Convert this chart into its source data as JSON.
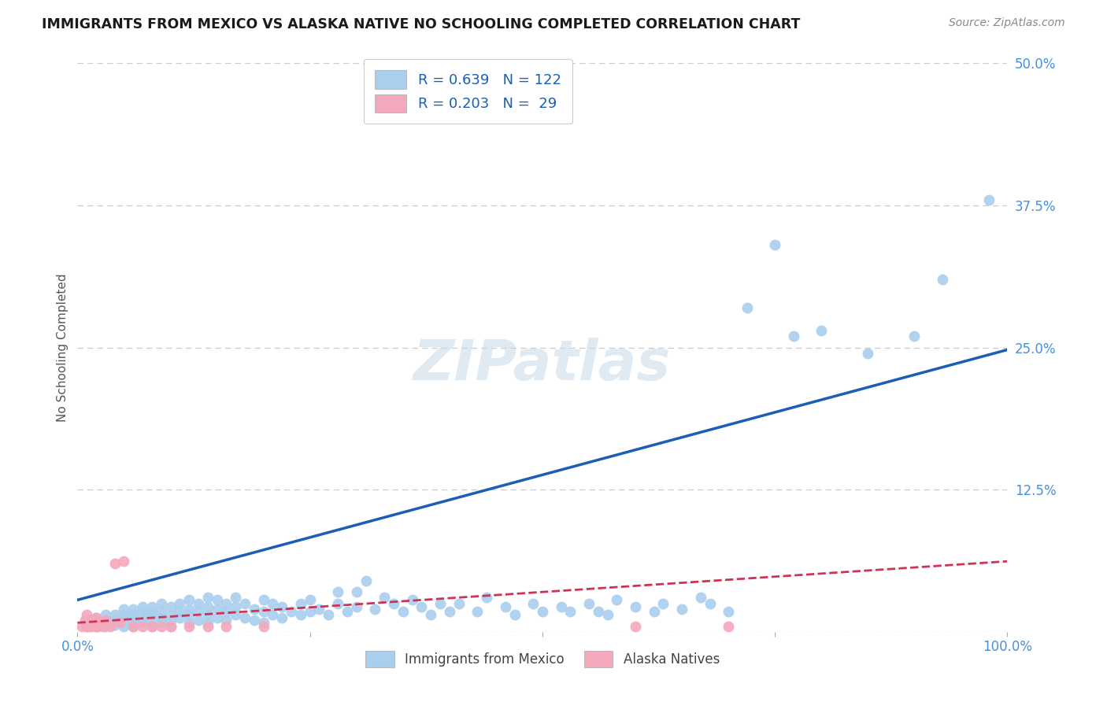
{
  "title": "IMMIGRANTS FROM MEXICO VS ALASKA NATIVE NO SCHOOLING COMPLETED CORRELATION CHART",
  "source": "Source: ZipAtlas.com",
  "ylabel": "No Schooling Completed",
  "x_ticks": [
    0.0,
    0.25,
    0.5,
    0.75,
    1.0
  ],
  "x_tick_labels": [
    "0.0%",
    "",
    "",
    "",
    "100.0%"
  ],
  "y_tick_labels": [
    "",
    "12.5%",
    "25.0%",
    "37.5%",
    "50.0%"
  ],
  "y_ticks": [
    0.0,
    0.125,
    0.25,
    0.375,
    0.5
  ],
  "xlim": [
    0.0,
    1.0
  ],
  "ylim": [
    0.0,
    0.5
  ],
  "blue_R": 0.639,
  "blue_N": 122,
  "pink_R": 0.203,
  "pink_N": 29,
  "legend_labels": [
    "Immigrants from Mexico",
    "Alaska Natives"
  ],
  "blue_color": "#aacfee",
  "pink_color": "#f5a8bb",
  "line_blue": "#1a5fb4",
  "line_pink": "#cc3355",
  "watermark": "ZIPatlas",
  "title_color": "#1a1a1a",
  "tick_color": "#4a90d9",
  "background_color": "#ffffff",
  "grid_color": "#cccccc",
  "blue_scatter_x": [
    0.01,
    0.01,
    0.02,
    0.02,
    0.02,
    0.03,
    0.03,
    0.03,
    0.03,
    0.04,
    0.04,
    0.04,
    0.05,
    0.05,
    0.05,
    0.05,
    0.06,
    0.06,
    0.06,
    0.06,
    0.06,
    0.07,
    0.07,
    0.07,
    0.07,
    0.08,
    0.08,
    0.08,
    0.08,
    0.08,
    0.09,
    0.09,
    0.09,
    0.09,
    0.1,
    0.1,
    0.1,
    0.1,
    0.11,
    0.11,
    0.11,
    0.12,
    0.12,
    0.12,
    0.12,
    0.13,
    0.13,
    0.13,
    0.14,
    0.14,
    0.14,
    0.14,
    0.15,
    0.15,
    0.15,
    0.16,
    0.16,
    0.16,
    0.17,
    0.17,
    0.17,
    0.18,
    0.18,
    0.19,
    0.19,
    0.2,
    0.2,
    0.2,
    0.21,
    0.21,
    0.22,
    0.22,
    0.23,
    0.24,
    0.24,
    0.25,
    0.25,
    0.26,
    0.27,
    0.28,
    0.28,
    0.29,
    0.3,
    0.3,
    0.31,
    0.32,
    0.33,
    0.34,
    0.35,
    0.36,
    0.37,
    0.38,
    0.39,
    0.4,
    0.41,
    0.43,
    0.44,
    0.46,
    0.47,
    0.49,
    0.5,
    0.52,
    0.53,
    0.55,
    0.56,
    0.57,
    0.58,
    0.6,
    0.62,
    0.63,
    0.65,
    0.67,
    0.68,
    0.7,
    0.72,
    0.75,
    0.77,
    0.8,
    0.85,
    0.9,
    0.93,
    0.98
  ],
  "blue_scatter_y": [
    0.005,
    0.01,
    0.005,
    0.008,
    0.012,
    0.005,
    0.008,
    0.01,
    0.015,
    0.006,
    0.01,
    0.015,
    0.005,
    0.01,
    0.015,
    0.02,
    0.005,
    0.008,
    0.012,
    0.015,
    0.02,
    0.008,
    0.012,
    0.018,
    0.022,
    0.005,
    0.01,
    0.015,
    0.018,
    0.022,
    0.008,
    0.012,
    0.018,
    0.025,
    0.005,
    0.01,
    0.015,
    0.022,
    0.012,
    0.018,
    0.025,
    0.008,
    0.015,
    0.02,
    0.028,
    0.01,
    0.018,
    0.025,
    0.008,
    0.015,
    0.022,
    0.03,
    0.012,
    0.02,
    0.028,
    0.01,
    0.018,
    0.025,
    0.015,
    0.022,
    0.03,
    0.012,
    0.025,
    0.01,
    0.02,
    0.008,
    0.018,
    0.028,
    0.015,
    0.025,
    0.012,
    0.022,
    0.018,
    0.015,
    0.025,
    0.018,
    0.028,
    0.02,
    0.015,
    0.025,
    0.035,
    0.018,
    0.022,
    0.035,
    0.045,
    0.02,
    0.03,
    0.025,
    0.018,
    0.028,
    0.022,
    0.015,
    0.025,
    0.018,
    0.025,
    0.018,
    0.03,
    0.022,
    0.015,
    0.025,
    0.018,
    0.022,
    0.018,
    0.025,
    0.018,
    0.015,
    0.028,
    0.022,
    0.018,
    0.025,
    0.02,
    0.03,
    0.025,
    0.018,
    0.285,
    0.34,
    0.26,
    0.265,
    0.245,
    0.26,
    0.31,
    0.38
  ],
  "pink_scatter_x": [
    0.005,
    0.008,
    0.01,
    0.01,
    0.012,
    0.015,
    0.015,
    0.018,
    0.02,
    0.02,
    0.022,
    0.025,
    0.028,
    0.03,
    0.035,
    0.04,
    0.045,
    0.05,
    0.06,
    0.07,
    0.08,
    0.09,
    0.1,
    0.12,
    0.14,
    0.16,
    0.2,
    0.6,
    0.7
  ],
  "pink_scatter_y": [
    0.005,
    0.01,
    0.005,
    0.015,
    0.005,
    0.01,
    0.005,
    0.008,
    0.005,
    0.012,
    0.005,
    0.008,
    0.005,
    0.01,
    0.005,
    0.06,
    0.008,
    0.062,
    0.005,
    0.005,
    0.005,
    0.005,
    0.005,
    0.005,
    0.005,
    0.005,
    0.005,
    0.005,
    0.005
  ],
  "blue_line_x": [
    0.0,
    1.0
  ],
  "blue_line_y": [
    0.028,
    0.248
  ],
  "pink_line_x": [
    0.0,
    1.0
  ],
  "pink_line_y": [
    0.008,
    0.062
  ]
}
